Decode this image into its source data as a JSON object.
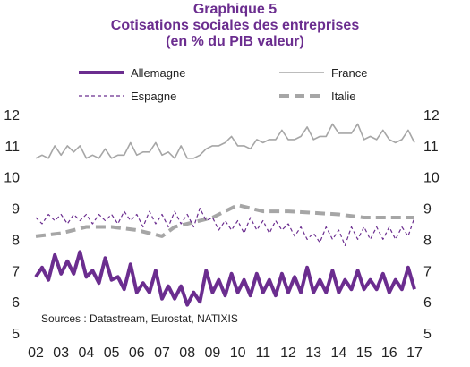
{
  "chart_data": {
    "type": "line",
    "title": [
      "Graphique 5",
      "Cotisations sociales des entreprises",
      "(en % du PIB valeur)"
    ],
    "source": "Sources : Datastream, Eurostat, NATIXIS",
    "x_tick_labels": [
      "02",
      "03",
      "04",
      "05",
      "06",
      "07",
      "08",
      "09",
      "10",
      "11",
      "12",
      "13",
      "14",
      "15",
      "16",
      "17"
    ],
    "x_ticks": [
      2002,
      2003,
      2004,
      2005,
      2006,
      2007,
      2008,
      2009,
      2010,
      2011,
      2012,
      2013,
      2014,
      2015,
      2016,
      2017
    ],
    "xlim": [
      2002,
      2017
    ],
    "y_ticks": [
      5,
      6,
      7,
      8,
      9,
      10,
      11,
      12
    ],
    "ylim": [
      5,
      12
    ],
    "legend_placement": "top",
    "series": [
      {
        "name": "Allemagne",
        "color": "#6b2d8f",
        "style": "solid-thick",
        "x": [
          2002.0,
          2002.25,
          2002.5,
          2002.75,
          2003.0,
          2003.25,
          2003.5,
          2003.75,
          2004.0,
          2004.25,
          2004.5,
          2004.75,
          2005.0,
          2005.25,
          2005.5,
          2005.75,
          2006.0,
          2006.25,
          2006.5,
          2006.75,
          2007.0,
          2007.25,
          2007.5,
          2007.75,
          2008.0,
          2008.25,
          2008.5,
          2008.75,
          2009.0,
          2009.25,
          2009.5,
          2009.75,
          2010.0,
          2010.25,
          2010.5,
          2010.75,
          2011.0,
          2011.25,
          2011.5,
          2011.75,
          2012.0,
          2012.25,
          2012.5,
          2012.75,
          2013.0,
          2013.25,
          2013.5,
          2013.75,
          2014.0,
          2014.25,
          2014.5,
          2014.75,
          2015.0,
          2015.25,
          2015.5,
          2015.75,
          2016.0,
          2016.25,
          2016.5,
          2016.75,
          2017.0
        ],
        "y": [
          6.8,
          7.1,
          6.7,
          7.5,
          6.9,
          7.3,
          6.9,
          7.6,
          6.8,
          7.0,
          6.6,
          7.4,
          6.7,
          6.8,
          6.4,
          7.2,
          6.3,
          6.6,
          6.3,
          7.0,
          6.1,
          6.5,
          6.1,
          6.5,
          5.9,
          6.3,
          6.0,
          7.0,
          6.3,
          6.7,
          6.2,
          6.9,
          6.3,
          6.7,
          6.2,
          6.9,
          6.3,
          6.7,
          6.2,
          6.9,
          6.3,
          6.8,
          6.3,
          7.1,
          6.3,
          6.7,
          6.3,
          7.0,
          6.3,
          6.7,
          6.4,
          7.0,
          6.4,
          6.7,
          6.4,
          6.9,
          6.3,
          6.7,
          6.4,
          7.1,
          6.4
        ]
      },
      {
        "name": "France",
        "color": "#a6a6a6",
        "style": "solid-thin",
        "x": [
          2002.0,
          2002.25,
          2002.5,
          2002.75,
          2003.0,
          2003.25,
          2003.5,
          2003.75,
          2004.0,
          2004.25,
          2004.5,
          2004.75,
          2005.0,
          2005.25,
          2005.5,
          2005.75,
          2006.0,
          2006.25,
          2006.5,
          2006.75,
          2007.0,
          2007.25,
          2007.5,
          2007.75,
          2008.0,
          2008.25,
          2008.5,
          2008.75,
          2009.0,
          2009.25,
          2009.5,
          2009.75,
          2010.0,
          2010.25,
          2010.5,
          2010.75,
          2011.0,
          2011.25,
          2011.5,
          2011.75,
          2012.0,
          2012.25,
          2012.5,
          2012.75,
          2013.0,
          2013.25,
          2013.5,
          2013.75,
          2014.0,
          2014.25,
          2014.5,
          2014.75,
          2015.0,
          2015.25,
          2015.5,
          2015.75,
          2016.0,
          2016.25,
          2016.5,
          2016.75,
          2017.0
        ],
        "y": [
          10.6,
          10.7,
          10.6,
          11.0,
          10.7,
          11.0,
          10.8,
          11.0,
          10.6,
          10.7,
          10.6,
          10.9,
          10.6,
          10.7,
          10.7,
          11.1,
          10.7,
          10.8,
          10.8,
          11.1,
          10.7,
          10.8,
          10.6,
          11.0,
          10.6,
          10.6,
          10.7,
          10.9,
          11.0,
          11.0,
          11.1,
          11.3,
          11.0,
          11.0,
          10.9,
          11.2,
          11.1,
          11.2,
          11.2,
          11.5,
          11.2,
          11.2,
          11.3,
          11.6,
          11.2,
          11.3,
          11.3,
          11.7,
          11.4,
          11.4,
          11.4,
          11.7,
          11.2,
          11.3,
          11.2,
          11.5,
          11.2,
          11.1,
          11.2,
          11.5,
          11.1
        ]
      },
      {
        "name": "Espagne",
        "color": "#6b2d8f",
        "style": "dashed-thin",
        "x": [
          2002.0,
          2002.25,
          2002.5,
          2002.75,
          2003.0,
          2003.25,
          2003.5,
          2003.75,
          2004.0,
          2004.25,
          2004.5,
          2004.75,
          2005.0,
          2005.25,
          2005.5,
          2005.75,
          2006.0,
          2006.25,
          2006.5,
          2006.75,
          2007.0,
          2007.25,
          2007.5,
          2007.75,
          2008.0,
          2008.25,
          2008.5,
          2008.75,
          2009.0,
          2009.25,
          2009.5,
          2009.75,
          2010.0,
          2010.25,
          2010.5,
          2010.75,
          2011.0,
          2011.25,
          2011.5,
          2011.75,
          2012.0,
          2012.25,
          2012.5,
          2012.75,
          2013.0,
          2013.25,
          2013.5,
          2013.75,
          2014.0,
          2014.25,
          2014.5,
          2014.75,
          2015.0,
          2015.25,
          2015.5,
          2015.75,
          2016.0,
          2016.25,
          2016.5,
          2016.75,
          2017.0
        ],
        "y": [
          8.7,
          8.5,
          8.8,
          8.6,
          8.8,
          8.5,
          8.8,
          8.6,
          8.8,
          8.5,
          8.8,
          8.6,
          8.8,
          8.5,
          8.9,
          8.6,
          8.8,
          8.4,
          8.9,
          8.5,
          8.8,
          8.4,
          8.9,
          8.5,
          8.8,
          8.4,
          9.0,
          8.6,
          8.7,
          8.3,
          8.6,
          8.3,
          8.6,
          8.2,
          8.7,
          8.3,
          8.6,
          8.2,
          8.6,
          8.3,
          8.5,
          8.1,
          8.4,
          8.0,
          8.2,
          7.9,
          8.4,
          8.0,
          8.3,
          7.8,
          8.4,
          8.0,
          8.4,
          8.0,
          8.4,
          8.0,
          8.4,
          8.0,
          8.4,
          8.1,
          8.7
        ]
      },
      {
        "name": "Italie",
        "color": "#a6a6a6",
        "style": "dashed-thick",
        "x": [
          2002.0,
          2003.0,
          2004.0,
          2005.0,
          2006.0,
          2006.5,
          2007.0,
          2007.5,
          2008.0,
          2009.0,
          2010.0,
          2010.5,
          2011.0,
          2012.0,
          2013.0,
          2014.0,
          2015.0,
          2016.0,
          2017.0
        ],
        "y": [
          8.1,
          8.2,
          8.4,
          8.4,
          8.3,
          8.2,
          8.1,
          8.4,
          8.5,
          8.7,
          9.1,
          9.0,
          8.9,
          8.9,
          8.85,
          8.8,
          8.7,
          8.7,
          8.7
        ]
      }
    ]
  }
}
